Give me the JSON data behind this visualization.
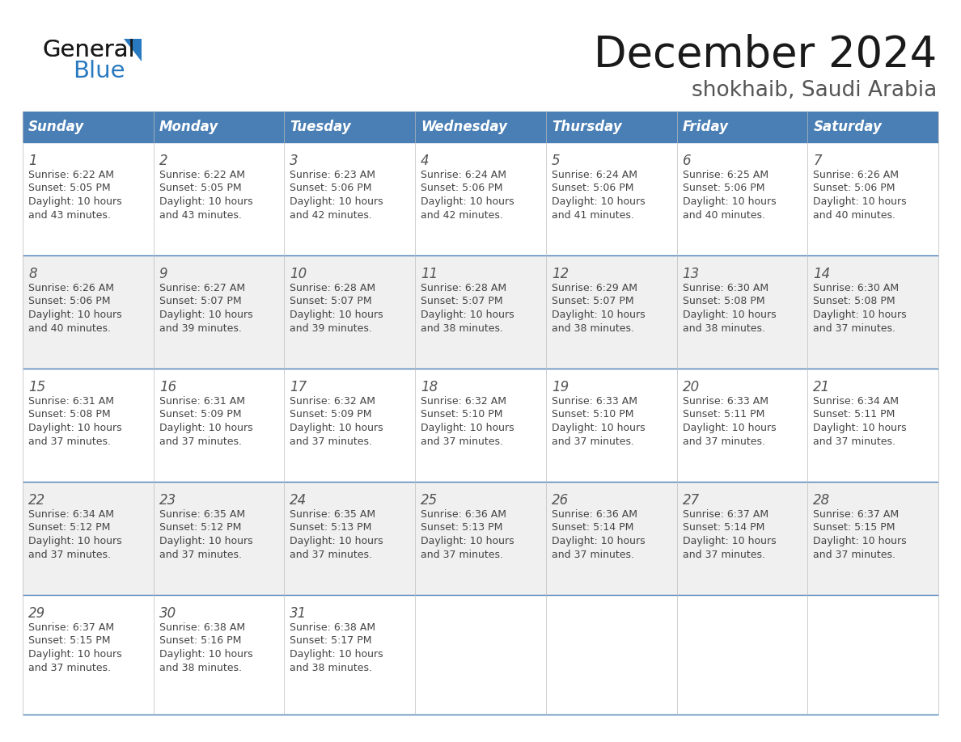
{
  "title": "December 2024",
  "subtitle": "shokhaib, Saudi Arabia",
  "days_of_week": [
    "Sunday",
    "Monday",
    "Tuesday",
    "Wednesday",
    "Thursday",
    "Friday",
    "Saturday"
  ],
  "header_bg": "#4a7fb5",
  "header_text": "#ffffff",
  "row_bg": [
    "#ffffff",
    "#f0f0f0"
  ],
  "border_color": "#4a7fb5",
  "grid_color": "#bbbbbb",
  "text_color": "#444444",
  "day_num_color": "#555555",
  "calendar_data": [
    {
      "day": 1,
      "sunrise": "6:22 AM",
      "sunset": "5:05 PM",
      "daylight_h": "10 hours",
      "daylight_m": "43 minutes"
    },
    {
      "day": 2,
      "sunrise": "6:22 AM",
      "sunset": "5:05 PM",
      "daylight_h": "10 hours",
      "daylight_m": "43 minutes"
    },
    {
      "day": 3,
      "sunrise": "6:23 AM",
      "sunset": "5:06 PM",
      "daylight_h": "10 hours",
      "daylight_m": "42 minutes"
    },
    {
      "day": 4,
      "sunrise": "6:24 AM",
      "sunset": "5:06 PM",
      "daylight_h": "10 hours",
      "daylight_m": "42 minutes"
    },
    {
      "day": 5,
      "sunrise": "6:24 AM",
      "sunset": "5:06 PM",
      "daylight_h": "10 hours",
      "daylight_m": "41 minutes"
    },
    {
      "day": 6,
      "sunrise": "6:25 AM",
      "sunset": "5:06 PM",
      "daylight_h": "10 hours",
      "daylight_m": "40 minutes"
    },
    {
      "day": 7,
      "sunrise": "6:26 AM",
      "sunset": "5:06 PM",
      "daylight_h": "10 hours",
      "daylight_m": "40 minutes"
    },
    {
      "day": 8,
      "sunrise": "6:26 AM",
      "sunset": "5:06 PM",
      "daylight_h": "10 hours",
      "daylight_m": "40 minutes"
    },
    {
      "day": 9,
      "sunrise": "6:27 AM",
      "sunset": "5:07 PM",
      "daylight_h": "10 hours",
      "daylight_m": "39 minutes"
    },
    {
      "day": 10,
      "sunrise": "6:28 AM",
      "sunset": "5:07 PM",
      "daylight_h": "10 hours",
      "daylight_m": "39 minutes"
    },
    {
      "day": 11,
      "sunrise": "6:28 AM",
      "sunset": "5:07 PM",
      "daylight_h": "10 hours",
      "daylight_m": "38 minutes"
    },
    {
      "day": 12,
      "sunrise": "6:29 AM",
      "sunset": "5:07 PM",
      "daylight_h": "10 hours",
      "daylight_m": "38 minutes"
    },
    {
      "day": 13,
      "sunrise": "6:30 AM",
      "sunset": "5:08 PM",
      "daylight_h": "10 hours",
      "daylight_m": "38 minutes"
    },
    {
      "day": 14,
      "sunrise": "6:30 AM",
      "sunset": "5:08 PM",
      "daylight_h": "10 hours",
      "daylight_m": "37 minutes"
    },
    {
      "day": 15,
      "sunrise": "6:31 AM",
      "sunset": "5:08 PM",
      "daylight_h": "10 hours",
      "daylight_m": "37 minutes"
    },
    {
      "day": 16,
      "sunrise": "6:31 AM",
      "sunset": "5:09 PM",
      "daylight_h": "10 hours",
      "daylight_m": "37 minutes"
    },
    {
      "day": 17,
      "sunrise": "6:32 AM",
      "sunset": "5:09 PM",
      "daylight_h": "10 hours",
      "daylight_m": "37 minutes"
    },
    {
      "day": 18,
      "sunrise": "6:32 AM",
      "sunset": "5:10 PM",
      "daylight_h": "10 hours",
      "daylight_m": "37 minutes"
    },
    {
      "day": 19,
      "sunrise": "6:33 AM",
      "sunset": "5:10 PM",
      "daylight_h": "10 hours",
      "daylight_m": "37 minutes"
    },
    {
      "day": 20,
      "sunrise": "6:33 AM",
      "sunset": "5:11 PM",
      "daylight_h": "10 hours",
      "daylight_m": "37 minutes"
    },
    {
      "day": 21,
      "sunrise": "6:34 AM",
      "sunset": "5:11 PM",
      "daylight_h": "10 hours",
      "daylight_m": "37 minutes"
    },
    {
      "day": 22,
      "sunrise": "6:34 AM",
      "sunset": "5:12 PM",
      "daylight_h": "10 hours",
      "daylight_m": "37 minutes"
    },
    {
      "day": 23,
      "sunrise": "6:35 AM",
      "sunset": "5:12 PM",
      "daylight_h": "10 hours",
      "daylight_m": "37 minutes"
    },
    {
      "day": 24,
      "sunrise": "6:35 AM",
      "sunset": "5:13 PM",
      "daylight_h": "10 hours",
      "daylight_m": "37 minutes"
    },
    {
      "day": 25,
      "sunrise": "6:36 AM",
      "sunset": "5:13 PM",
      "daylight_h": "10 hours",
      "daylight_m": "37 minutes"
    },
    {
      "day": 26,
      "sunrise": "6:36 AM",
      "sunset": "5:14 PM",
      "daylight_h": "10 hours",
      "daylight_m": "37 minutes"
    },
    {
      "day": 27,
      "sunrise": "6:37 AM",
      "sunset": "5:14 PM",
      "daylight_h": "10 hours",
      "daylight_m": "37 minutes"
    },
    {
      "day": 28,
      "sunrise": "6:37 AM",
      "sunset": "5:15 PM",
      "daylight_h": "10 hours",
      "daylight_m": "37 minutes"
    },
    {
      "day": 29,
      "sunrise": "6:37 AM",
      "sunset": "5:15 PM",
      "daylight_h": "10 hours",
      "daylight_m": "37 minutes"
    },
    {
      "day": 30,
      "sunrise": "6:38 AM",
      "sunset": "5:16 PM",
      "daylight_h": "10 hours",
      "daylight_m": "38 minutes"
    },
    {
      "day": 31,
      "sunrise": "6:38 AM",
      "sunset": "5:17 PM",
      "daylight_h": "10 hours",
      "daylight_m": "38 minutes"
    }
  ],
  "logo_general_color": "#1a1a1a",
  "logo_blue_color": "#2879c0",
  "logo_triangle_color": "#2879c0",
  "title_fontsize": 38,
  "subtitle_fontsize": 19,
  "header_fontsize": 12,
  "day_num_fontsize": 12,
  "cell_text_fontsize": 9
}
